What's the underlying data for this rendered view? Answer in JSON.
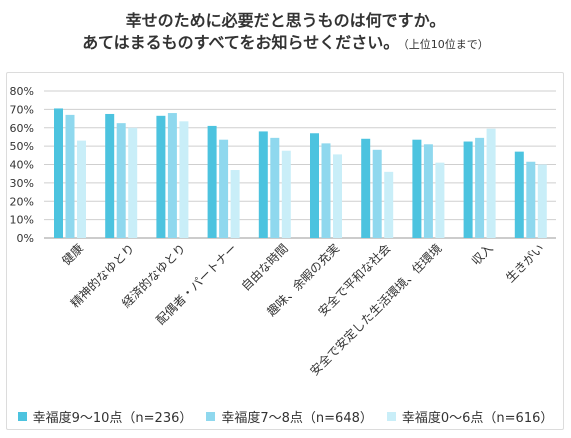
{
  "chart_data": {
    "type": "bar",
    "title_lines": [
      "幸せのために必要だと思うものは何ですか。",
      "あてはまるものすべてをお知らせください。"
    ],
    "title_note": "（上位10位まで）",
    "categories": [
      "健康",
      "精神的なゆとり",
      "経済的なゆとり",
      "配偶者・パートナー",
      "自由な時間",
      "趣味、余暇の充実",
      "安全で平和な社会",
      "安全で安定した生活環境、住環境",
      "収入",
      "生きがい"
    ],
    "series": [
      {
        "name": "幸福度9〜10点（n=236）",
        "color": "#4cc3df",
        "values": [
          70.5,
          67.5,
          66.5,
          61,
          58,
          57,
          54,
          53.5,
          52.5,
          47
        ]
      },
      {
        "name": "幸福度7〜8点（n=648）",
        "color": "#8fd8ee",
        "values": [
          67,
          62.5,
          68,
          53.5,
          54.5,
          51.5,
          48,
          51,
          54.5,
          41.5
        ]
      },
      {
        "name": "幸福度0〜6点（n=616）",
        "color": "#c9eef8",
        "values": [
          53,
          60,
          63.5,
          37,
          47.5,
          45.5,
          36,
          41,
          59.5,
          40
        ]
      }
    ],
    "yticks": [
      "0%",
      "10%",
      "20%",
      "30%",
      "40%",
      "50%",
      "60%",
      "70%",
      "80%"
    ],
    "ylim": [
      0,
      80
    ],
    "grid": true,
    "legend_position": "bottom"
  }
}
